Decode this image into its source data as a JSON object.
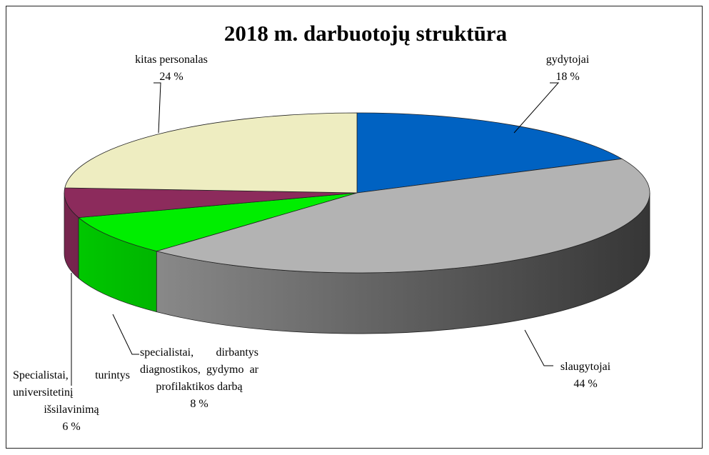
{
  "chart_data": {
    "type": "pie3d",
    "title": "2018 m. darbuotojų struktūra",
    "categories": [
      "gydytojai",
      "slaugytojai",
      "specialistai, dirbantys diagnostikos, gydymo ar profilaktikos darbą",
      "Specialistai, turintys universitetinį išsilavinimą",
      "kitas personalas"
    ],
    "values": [
      18,
      44,
      8,
      6,
      24
    ],
    "value_labels": [
      "18 %",
      "44 %",
      "8 %",
      "6 %",
      "24 %"
    ],
    "colors": [
      "#0062c2",
      "#b3b3b3",
      "#00ee00",
      "#8c2b5c",
      "#eeedc1"
    ]
  }
}
